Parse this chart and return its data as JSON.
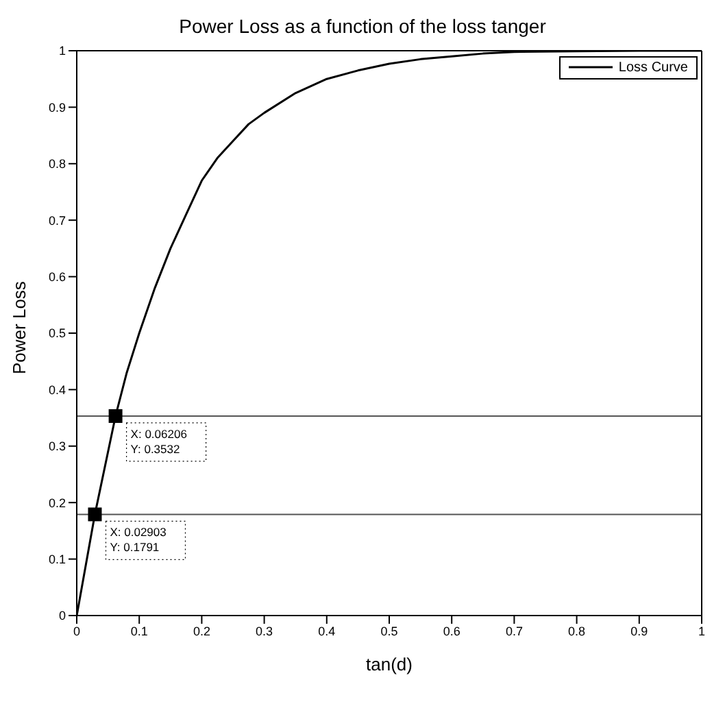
{
  "chart_data": {
    "type": "line",
    "title": "Power Loss as a function of the loss tanger",
    "xlabel": "tan(d)",
    "ylabel": "Power Loss",
    "xlim": [
      0,
      1
    ],
    "xticks": [
      0,
      0.1,
      0.2,
      0.3,
      0.4,
      0.5,
      0.6,
      0.7,
      0.8,
      0.9,
      1
    ],
    "ylim": [
      0,
      1
    ],
    "yticks": [
      0,
      0.1,
      0.2,
      0.3,
      0.4,
      0.5,
      0.6,
      0.7,
      0.8,
      0.9,
      1
    ],
    "grid": false,
    "legend": "top right",
    "series": [
      {
        "name": "Loss Curve",
        "color": "#000000",
        "marker": "none",
        "line_style": "solid",
        "x": [
          0,
          0.02903,
          0.06206,
          0.08,
          0.1,
          0.125,
          0.15,
          0.175,
          0.2,
          0.225,
          0.25,
          0.275,
          0.3,
          0.35,
          0.4,
          0.45,
          0.5,
          0.55,
          0.6,
          0.65,
          0.7,
          0.8,
          0.9,
          1
        ],
        "values": [
          0,
          0.1791,
          0.3532,
          0.43,
          0.5,
          0.58,
          0.65,
          0.71,
          0.77,
          0.81,
          0.84,
          0.87,
          0.89,
          0.925,
          0.95,
          0.965,
          0.977,
          0.985,
          0.99,
          0.995,
          0.998,
          0.999,
          1,
          1
        ]
      },
      {
        "type": "scatter",
        "color": "#000000",
        "marker": "square",
        "x": [
          0.02903,
          0.06206
        ],
        "values": [
          0.1791,
          0.3532
        ]
      }
    ],
    "ref_lines": [
      {
        "axis": "y",
        "value": 0.3532,
        "color": "#555555"
      },
      {
        "axis": "y",
        "value": 0.1791,
        "color": "#555555"
      }
    ],
    "annotations": [
      {
        "text": "X: 0.06206\nY: 0.3532",
        "x": 0.06206,
        "y": 0.3532
      },
      {
        "text": "X: 0.02903\nY: 0.1791",
        "x": 0.02903,
        "y": 0.1791
      }
    ]
  }
}
